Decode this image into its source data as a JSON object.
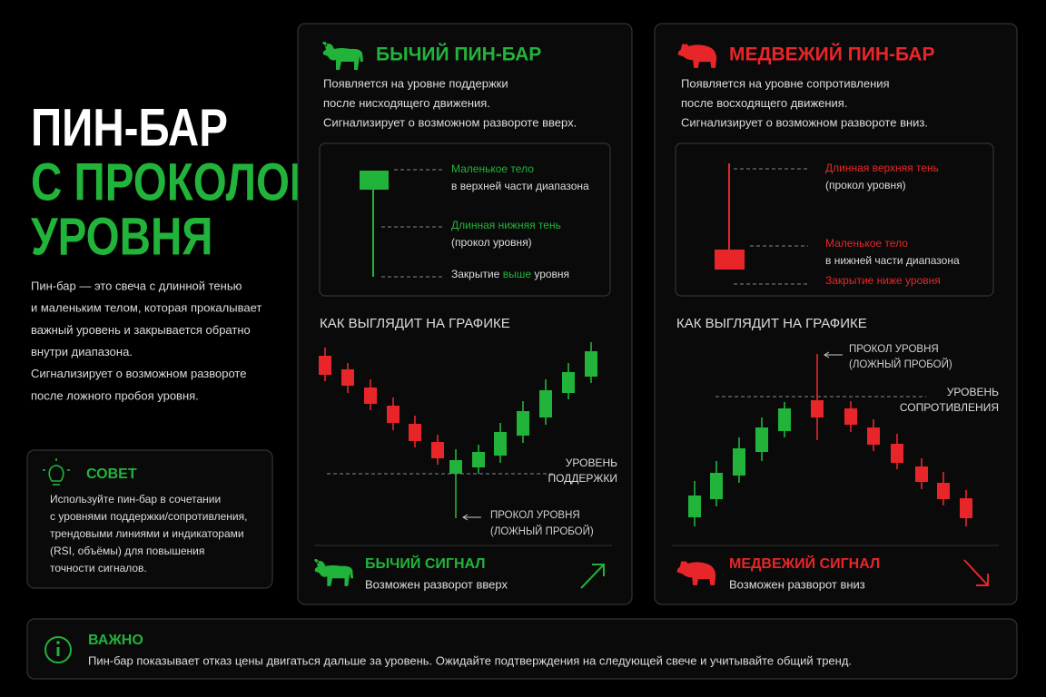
{
  "title": {
    "line1": "ПИН-БАР",
    "line2": "С ПРОКОЛОМ",
    "line3": "УРОВНЯ"
  },
  "description": [
    "Пин-бар — это свеча с длинной тенью",
    "и маленьким телом, которая прокалывает",
    "важный уровень и закрывается обратно",
    "внутри диапазона.",
    "Сигнализирует о возможном развороте",
    "после ложного пробоя уровня."
  ],
  "tip": {
    "title": "СОВЕТ",
    "lines": [
      "Используйте пин-бар в сочетании",
      "с уровнями поддержки/сопротивления,",
      "трендовыми линиями и индикаторами",
      "(RSI, объёмы) для повышения",
      "точности сигналов."
    ]
  },
  "bull": {
    "title": "БЫЧИЙ ПИН-БАР",
    "intro": [
      "Появляется на уровне поддержки",
      "после нисходящего движения.",
      "Сигнализирует о возможном развороте вверх."
    ],
    "diagram": {
      "body": [
        "Маленькое тело",
        "в верхней части диапазона"
      ],
      "shadow": [
        "Длинная нижняя тень",
        "(прокол уровня)"
      ],
      "close": [
        "Закрытие ",
        "выше",
        " уровня"
      ]
    },
    "chart_title": "КАК ВЫГЛЯДИТ НА ГРАФИКЕ",
    "level": [
      "УРОВЕНЬ",
      "ПОДДЕРЖКИ"
    ],
    "pierce": [
      "ПРОКОЛ УРОВНЯ",
      "(ЛОЖНЫЙ ПРОБОЙ)"
    ],
    "signal_title": "БЫЧИЙ СИГНАЛ",
    "signal_text": "Возможен разворот вверх"
  },
  "bear": {
    "title": "МЕДВЕЖИЙ ПИН-БАР",
    "intro": [
      "Появляется на уровне сопротивления",
      "после восходящего движения.",
      "Сигнализирует о возможном развороте вниз."
    ],
    "diagram": {
      "shadow": [
        "Длинная верхняя тень",
        "(прокол уровня)"
      ],
      "body": [
        "Маленькое тело",
        "в нижней части диапазона"
      ],
      "close": "Закрытие ниже уровня"
    },
    "chart_title": "КАК ВЫГЛЯДИТ НА ГРАФИКЕ",
    "level": [
      "УРОВЕНЬ",
      "СОПРОТИВЛЕНИЯ"
    ],
    "pierce": [
      "ПРОКОЛ УРОВНЯ",
      "(ЛОЖНЫЙ ПРОБОЙ)"
    ],
    "signal_title": "МЕДВЕЖИЙ СИГНАЛ",
    "signal_text": "Возможен разворот вниз"
  },
  "important": {
    "title": "ВАЖНО",
    "text": "Пин-бар показывает отказ цены двигаться дальше за уровень. Ожидайте подтверждения на следующей свече и учитывайте общий тренд."
  }
}
